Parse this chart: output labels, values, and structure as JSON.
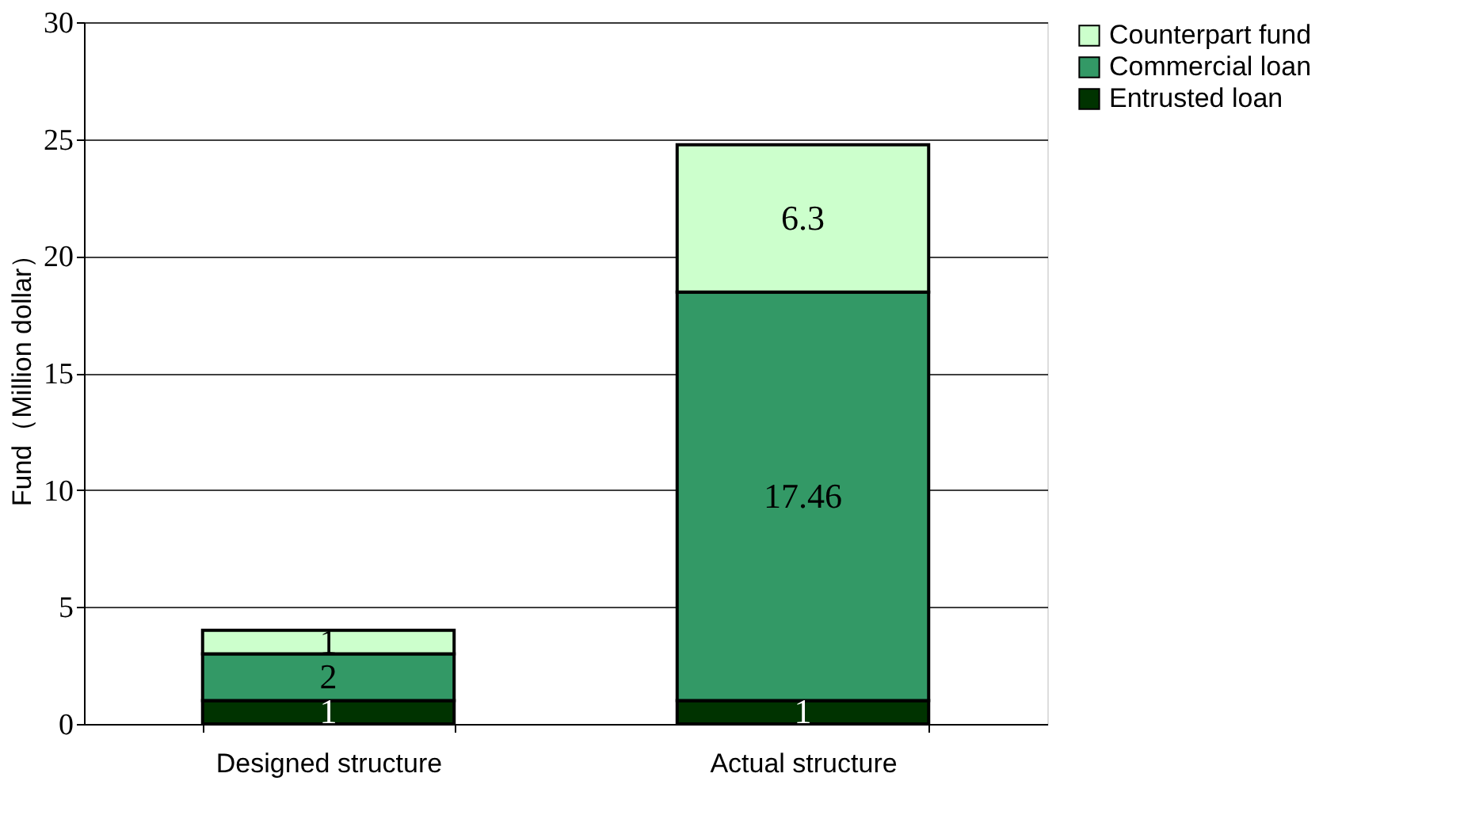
{
  "chart_data": {
    "type": "bar",
    "stacked": true,
    "ylabel": "Fund（Million dollar）",
    "categories": [
      "Designed structure",
      "Actual structure"
    ],
    "series": [
      {
        "name": "Entrusted loan",
        "color": "#003300",
        "values": [
          1,
          1
        ]
      },
      {
        "name": "Commercial loan",
        "color": "#339966",
        "values": [
          2,
          17.46
        ]
      },
      {
        "name": "Counterpart fund",
        "color": "#ccffcc",
        "values": [
          1,
          6.3
        ]
      }
    ],
    "ylim": [
      0,
      30
    ],
    "yticks": [
      0,
      5,
      10,
      15,
      20,
      25,
      30
    ],
    "grid": "y",
    "legend": "right",
    "data_labels": true
  }
}
